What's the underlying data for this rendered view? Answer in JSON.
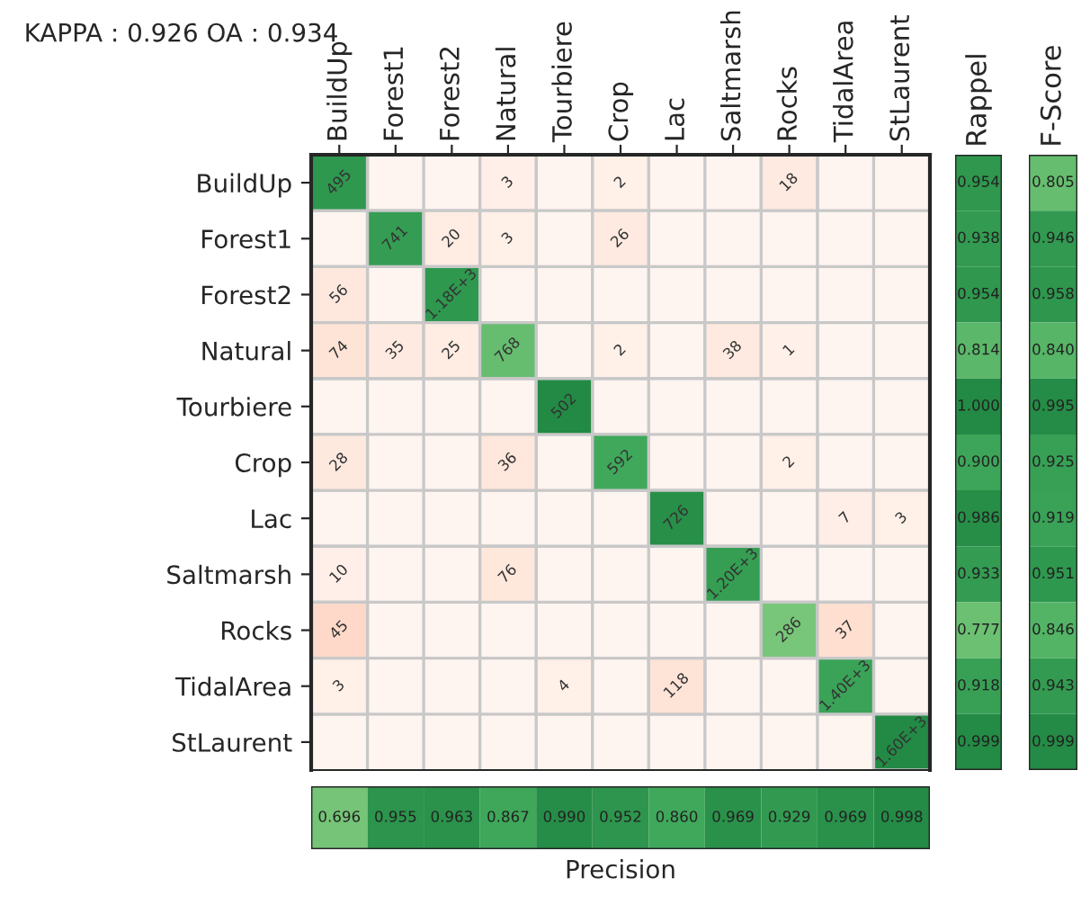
{
  "chart_data": [
    {
      "type": "heatmap",
      "title": "KAPPA : 0.926 OA : 0.934",
      "grid": true,
      "categories": [
        "BuildUp",
        "Forest1",
        "Forest2",
        "Natural",
        "Tourbiere",
        "Crop",
        "Lac",
        "Saltmarsh",
        "Rocks",
        "TidalArea",
        "StLaurent"
      ],
      "y_categories": [
        "BuildUp",
        "Forest1",
        "Forest2",
        "Natural",
        "Tourbiere",
        "Crop",
        "Lac",
        "Saltmarsh",
        "Rocks",
        "TidalArea",
        "StLaurent"
      ],
      "cells": [
        [
          495,
          null,
          null,
          3,
          null,
          2,
          null,
          null,
          18,
          null,
          null
        ],
        [
          null,
          741,
          20,
          3,
          null,
          26,
          null,
          null,
          null,
          null,
          null
        ],
        [
          56,
          null,
          1180,
          null,
          null,
          null,
          null,
          null,
          null,
          null,
          null
        ],
        [
          74,
          35,
          25,
          768,
          null,
          2,
          null,
          38,
          1,
          null,
          null
        ],
        [
          null,
          null,
          null,
          null,
          502,
          null,
          null,
          null,
          null,
          null,
          null
        ],
        [
          28,
          null,
          null,
          36,
          null,
          592,
          null,
          null,
          2,
          null,
          null
        ],
        [
          null,
          null,
          null,
          null,
          null,
          null,
          726,
          null,
          null,
          7,
          3
        ],
        [
          10,
          null,
          null,
          76,
          null,
          null,
          null,
          1200,
          null,
          null,
          null
        ],
        [
          45,
          null,
          null,
          null,
          null,
          null,
          null,
          null,
          286,
          37,
          null
        ],
        [
          3,
          null,
          null,
          null,
          4,
          null,
          118,
          null,
          null,
          1400,
          null
        ],
        [
          null,
          null,
          null,
          null,
          null,
          null,
          null,
          null,
          null,
          null,
          1600
        ]
      ],
      "cell_labels": [
        [
          "495",
          null,
          null,
          "3",
          null,
          "2",
          null,
          null,
          "18",
          null,
          null
        ],
        [
          null,
          "741",
          "20",
          "3",
          null,
          "26",
          null,
          null,
          null,
          null,
          null
        ],
        [
          "56",
          null,
          "1.18E+3",
          null,
          null,
          null,
          null,
          null,
          null,
          null,
          null
        ],
        [
          "74",
          "35",
          "25",
          "768",
          null,
          "2",
          null,
          "38",
          "1",
          null,
          null
        ],
        [
          null,
          null,
          null,
          null,
          "502",
          null,
          null,
          null,
          null,
          null,
          null
        ],
        [
          "28",
          null,
          null,
          "36",
          null,
          "592",
          null,
          null,
          "2",
          null,
          null
        ],
        [
          null,
          null,
          null,
          null,
          null,
          null,
          "726",
          null,
          null,
          "7",
          "3"
        ],
        [
          "10",
          null,
          null,
          "76",
          null,
          null,
          null,
          "1.20E+3",
          null,
          null,
          null
        ],
        [
          "45",
          null,
          null,
          null,
          null,
          null,
          null,
          null,
          "286",
          "37",
          null
        ],
        [
          "3",
          null,
          null,
          null,
          "4",
          null,
          "118",
          null,
          null,
          "1.40E+3",
          null
        ],
        [
          null,
          null,
          null,
          null,
          null,
          null,
          null,
          null,
          null,
          null,
          "1.60E+3"
        ]
      ]
    },
    {
      "type": "heatmap",
      "categories": [
        "Rappel"
      ],
      "y_categories": [
        null,
        null,
        null,
        null,
        null,
        null,
        null,
        null,
        null,
        null,
        null
      ],
      "cells": [
        [
          0.954
        ],
        [
          0.938
        ],
        [
          0.954
        ],
        [
          0.814
        ],
        [
          1.0
        ],
        [
          0.9
        ],
        [
          0.986
        ],
        [
          0.933
        ],
        [
          0.777
        ],
        [
          0.918
        ],
        [
          0.999
        ]
      ],
      "cell_labels": [
        [
          "0.954"
        ],
        [
          "0.938"
        ],
        [
          "0.954"
        ],
        [
          "0.814"
        ],
        [
          "1.000"
        ],
        [
          "0.900"
        ],
        [
          "0.986"
        ],
        [
          "0.933"
        ],
        [
          "0.777"
        ],
        [
          "0.918"
        ],
        [
          "0.999"
        ]
      ]
    },
    {
      "type": "heatmap",
      "categories": [
        "F-Score"
      ],
      "y_categories": [
        null,
        null,
        null,
        null,
        null,
        null,
        null,
        null,
        null,
        null,
        null
      ],
      "cells": [
        [
          0.805
        ],
        [
          0.946
        ],
        [
          0.958
        ],
        [
          0.84
        ],
        [
          0.995
        ],
        [
          0.925
        ],
        [
          0.919
        ],
        [
          0.951
        ],
        [
          0.846
        ],
        [
          0.943
        ],
        [
          0.999
        ]
      ],
      "cell_labels": [
        [
          "0.805"
        ],
        [
          "0.946"
        ],
        [
          "0.958"
        ],
        [
          "0.840"
        ],
        [
          "0.995"
        ],
        [
          "0.925"
        ],
        [
          "0.919"
        ],
        [
          "0.951"
        ],
        [
          "0.846"
        ],
        [
          "0.943"
        ],
        [
          "0.999"
        ]
      ]
    },
    {
      "type": "heatmap",
      "xlabel": "Precision",
      "categories": [
        null,
        null,
        null,
        null,
        null,
        null,
        null,
        null,
        null,
        null,
        null
      ],
      "y_categories": [
        null
      ],
      "cells": [
        [
          0.696,
          0.955,
          0.963,
          0.867,
          0.99,
          0.952,
          0.86,
          0.969,
          0.929,
          0.969,
          0.998
        ]
      ],
      "cell_labels": [
        [
          "0.696",
          "0.955",
          "0.963",
          "0.867",
          "0.990",
          "0.952",
          "0.860",
          "0.969",
          "0.929",
          "0.969",
          "0.998"
        ]
      ]
    }
  ]
}
